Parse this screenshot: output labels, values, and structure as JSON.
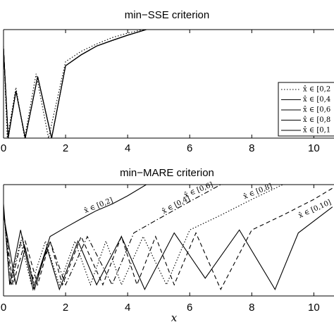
{
  "chart_data": [
    {
      "type": "line",
      "title": "min−SSE criterion",
      "xlim": [
        0,
        10.65
      ],
      "xticks": [
        0,
        2,
        4,
        6,
        8,
        10
      ],
      "ylim": [
        0.001,
        1
      ],
      "log_y": true,
      "legend": "lower right",
      "series": [
        {
          "name": "x̂ ∈ [0,2",
          "color": "#000",
          "style": "dotted",
          "x": [
            0,
            0.12,
            0.4,
            0.68,
            1.05,
            1.45,
            2,
            2.5,
            3,
            3.5,
            4,
            4.5
          ],
          "values": [
            0.35,
            0.001,
            0.025,
            0.001,
            0.06,
            0.001,
            0.13,
            0.25,
            0.4,
            0.6,
            0.8,
            1
          ]
        },
        {
          "name": "x̂ ∈ [0,4",
          "color": "#000",
          "style": "solid",
          "x": [
            0,
            0.15,
            0.4,
            0.7,
            1.1,
            1.55,
            2,
            2.5,
            3,
            3.5,
            4,
            4.6
          ],
          "values": [
            0.3,
            0.001,
            0.02,
            0.001,
            0.05,
            0.001,
            0.1,
            0.2,
            0.35,
            0.5,
            0.7,
            1
          ]
        },
        {
          "name": "x̂ ∈ [0,6",
          "color": "#000",
          "style": "solid",
          "x": [
            0,
            0.15,
            0.4,
            0.7,
            1.1,
            1.55,
            2,
            2.5,
            3,
            3.5,
            4,
            4.6
          ],
          "values": [
            0.3,
            0.001,
            0.02,
            0.001,
            0.05,
            0.001,
            0.1,
            0.2,
            0.35,
            0.5,
            0.7,
            1
          ]
        },
        {
          "name": "x̂ ∈ [0,8",
          "color": "#000",
          "style": "solid",
          "x": [
            0,
            0.15,
            0.4,
            0.7,
            1.1,
            1.55,
            2,
            2.5,
            3,
            3.5,
            4,
            4.6
          ],
          "values": [
            0.3,
            0.001,
            0.02,
            0.001,
            0.05,
            0.001,
            0.1,
            0.2,
            0.35,
            0.5,
            0.7,
            1
          ]
        },
        {
          "name": "x̂ ∈ [0,1",
          "color": "#000",
          "style": "solid",
          "x": [
            0,
            0.15,
            0.4,
            0.7,
            1.1,
            1.55,
            2,
            2.5,
            3,
            3.5,
            4,
            4.6
          ],
          "values": [
            0.3,
            0.001,
            0.02,
            0.001,
            0.05,
            0.001,
            0.1,
            0.2,
            0.35,
            0.5,
            0.7,
            1
          ]
        }
      ]
    },
    {
      "type": "line",
      "title": "min−MARE criterion",
      "xlabel": "x",
      "xlim": [
        0,
        10.65
      ],
      "xticks": [
        0,
        2,
        4,
        6,
        8,
        10
      ],
      "ylim": [
        0.001,
        1
      ],
      "log_y": true,
      "inline_labels": true,
      "series": [
        {
          "name": "x̂ ∈ [0,2]",
          "color": "#000",
          "style": "solid",
          "x": [
            0,
            0.2,
            0.55,
            0.95,
            1.5,
            2,
            2.5,
            3,
            3.5,
            4,
            4.6
          ],
          "values": [
            0.3,
            0.002,
            0.06,
            0.0015,
            0.04,
            0.07,
            0.12,
            0.2,
            0.3,
            0.5,
            1
          ]
        },
        {
          "name": "x̂ ∈ [0,4]",
          "color": "#000",
          "style": "dashdot",
          "x": [
            0,
            0.25,
            0.6,
            1.0,
            1.5,
            2.0,
            2.7,
            3.5,
            4.2,
            5,
            6,
            7
          ],
          "values": [
            0.2,
            0.002,
            0.04,
            0.002,
            0.03,
            0.002,
            0.04,
            0.002,
            0.05,
            0.12,
            0.35,
            1
          ]
        },
        {
          "name": "x̂ ∈ [0,6]",
          "color": "#000",
          "style": "dotted",
          "x": [
            0,
            0.2,
            0.55,
            0.9,
            1.35,
            1.8,
            2.3,
            2.8,
            3.3,
            3.8,
            4.5,
            5.25,
            6,
            7,
            8,
            9
          ],
          "values": [
            0.25,
            0.002,
            0.03,
            0.002,
            0.03,
            0.002,
            0.03,
            0.002,
            0.03,
            0.002,
            0.04,
            0.002,
            0.06,
            0.15,
            0.4,
            1
          ]
        },
        {
          "name": "x̂ ∈ [0,8]",
          "color": "#000",
          "style": "dashed",
          "x": [
            0,
            0.3,
            0.7,
            1.1,
            1.5,
            1.9,
            2.5,
            3.2,
            3.8,
            4.3,
            4.9,
            5.5,
            6.2,
            7.0,
            8,
            9,
            10,
            10.6
          ],
          "values": [
            0.2,
            0.002,
            0.03,
            0.002,
            0.03,
            0.002,
            0.04,
            0.002,
            0.04,
            0.002,
            0.04,
            0.002,
            0.05,
            0.0015,
            0.06,
            0.15,
            0.4,
            0.8
          ]
        },
        {
          "name": "x̂ ∈ [0,10]",
          "color": "#000",
          "style": "solid",
          "x": [
            0,
            0.4,
            0.7,
            1.0,
            1.4,
            1.8,
            2.4,
            3.0,
            3.8,
            4.55,
            5.5,
            6.5,
            7.6,
            8.75,
            9.5,
            10.6
          ],
          "values": [
            0.15,
            0.002,
            0.02,
            0.0015,
            0.02,
            0.0015,
            0.03,
            0.002,
            0.04,
            0.0015,
            0.05,
            0.003,
            0.06,
            0.0015,
            0.05,
            0.25
          ]
        }
      ]
    }
  ]
}
